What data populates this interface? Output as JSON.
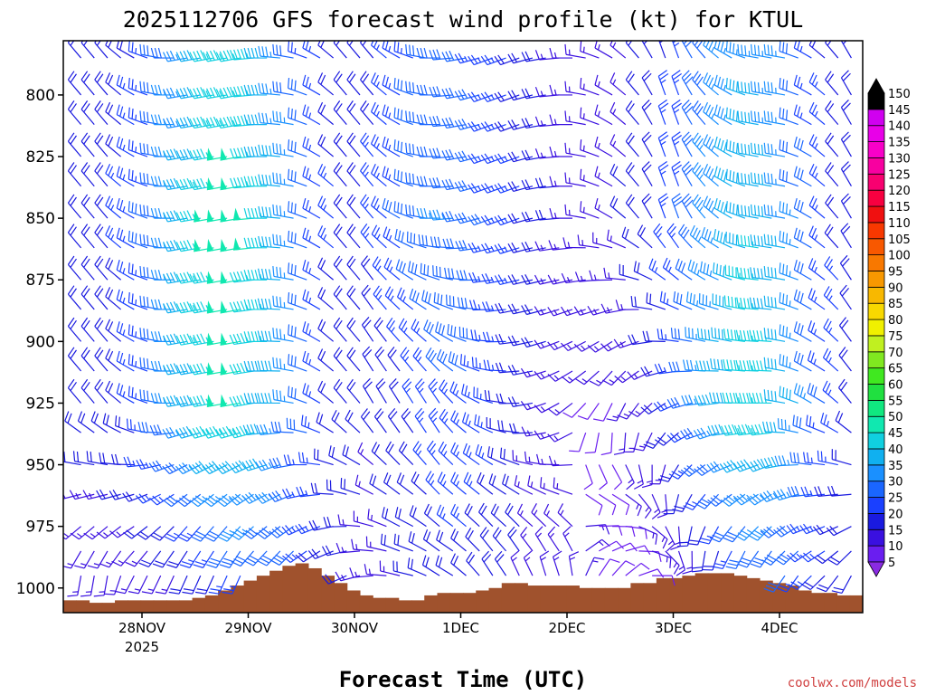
{
  "chart_data": {
    "type": "wind-barb-profile",
    "title": "2025112706 GFS forecast wind profile (kt) for KTUL",
    "xlabel": "Forecast Time (UTC)",
    "credit": "coolwx.com/models",
    "y_axis": {
      "unit": "hPa",
      "ticks": [
        800,
        825,
        850,
        875,
        900,
        925,
        950,
        975,
        1000
      ],
      "ylim": [
        778,
        1010
      ],
      "levels": [
        785,
        800,
        812,
        825,
        837,
        850,
        862,
        875,
        887,
        900,
        912,
        925,
        937,
        950,
        962,
        975,
        985,
        995
      ]
    },
    "x_axis": {
      "tick_labels": [
        "28NOV",
        "29NOV",
        "30NOV",
        "1DEC",
        "2DEC",
        "3DEC",
        "4DEC"
      ],
      "year_label": "2025",
      "start_hour_before_28nov": 15,
      "end_hour_after_4dec": 15,
      "step_hours": 3
    },
    "colorbar": {
      "values": [
        5,
        10,
        15,
        20,
        25,
        30,
        35,
        40,
        45,
        50,
        55,
        60,
        65,
        70,
        75,
        80,
        85,
        90,
        95,
        100,
        105,
        110,
        115,
        120,
        125,
        130,
        135,
        140,
        145,
        150
      ],
      "colors": [
        "#8a2be2",
        "#6a1ef0",
        "#3a10e0",
        "#1a1ae0",
        "#1a40ff",
        "#1a66ff",
        "#1a90ff",
        "#10b0f0",
        "#10d0e0",
        "#10e8b0",
        "#10e880",
        "#20e040",
        "#40e820",
        "#80e820",
        "#c0f020",
        "#f0f000",
        "#f8d800",
        "#f8b800",
        "#f89800",
        "#f87800",
        "#f85800",
        "#f83800",
        "#f01010",
        "#f80040",
        "#f80070",
        "#f800a0",
        "#f800c8",
        "#e800e8",
        "#d000f0",
        "#000000"
      ]
    },
    "terrain_color": "#a0522d",
    "terrain_pressure": [
      1005,
      1005,
      1006,
      1006,
      1005,
      1005,
      1005,
      1005,
      1005,
      1005,
      1004,
      1003,
      1001,
      999,
      997,
      995,
      993,
      991,
      990,
      992,
      995,
      998,
      1001,
      1003,
      1004,
      1004,
      1005,
      1005,
      1003,
      1002,
      1002,
      1002,
      1001,
      1000,
      998,
      998,
      999,
      999,
      999,
      999,
      1000,
      1000,
      1000,
      1000,
      998,
      998,
      996,
      996,
      995,
      994,
      994,
      994,
      995,
      996,
      997,
      998,
      999,
      1001,
      1002,
      1002,
      1003,
      1003
    ],
    "winds": {
      "comment": "direction (deg, from) and speed (kt) per forecast step for lower, middle and upper layers",
      "dir_low": [
        180,
        180,
        180,
        190,
        200,
        200,
        200,
        200,
        200,
        200,
        200,
        200,
        200,
        210,
        210,
        210,
        210,
        220,
        220,
        230,
        240,
        250,
        260,
        270,
        280,
        280,
        290,
        300,
        300,
        310,
        320,
        330,
        330,
        340,
        340,
        350,
        350,
        360,
        10,
        20,
        30,
        40,
        60,
        80,
        110,
        140,
        160,
        170,
        180,
        190,
        190,
        200,
        200,
        210,
        210,
        220,
        220,
        210,
        200,
        190,
        180,
        180
      ],
      "spd_low": [
        12,
        12,
        13,
        14,
        14,
        15,
        15,
        16,
        17,
        18,
        20,
        22,
        24,
        26,
        27,
        27,
        26,
        24,
        22,
        20,
        18,
        17,
        16,
        16,
        17,
        18,
        19,
        20,
        21,
        21,
        20,
        19,
        18,
        17,
        16,
        15,
        14,
        14,
        13,
        12,
        12,
        12,
        12,
        12,
        12,
        13,
        14,
        16,
        18,
        21,
        24,
        26,
        27,
        27,
        26,
        24,
        22,
        20,
        18,
        17,
        16,
        15
      ],
      "dir_mid": [
        320,
        320,
        320,
        310,
        300,
        290,
        280,
        270,
        260,
        260,
        260,
        260,
        260,
        260,
        270,
        270,
        280,
        290,
        300,
        310,
        320,
        320,
        330,
        330,
        330,
        330,
        330,
        330,
        320,
        310,
        300,
        290,
        280,
        270,
        260,
        250,
        240,
        230,
        220,
        210,
        200,
        200,
        210,
        220,
        230,
        240,
        250,
        260,
        260,
        270,
        270,
        270,
        270,
        280,
        290,
        300,
        300,
        310,
        320,
        320,
        320,
        320
      ],
      "spd_mid": [
        20,
        20,
        20,
        21,
        23,
        26,
        30,
        34,
        38,
        42,
        46,
        48,
        48,
        46,
        42,
        38,
        33,
        28,
        24,
        21,
        19,
        18,
        18,
        19,
        20,
        22,
        24,
        26,
        27,
        27,
        26,
        24,
        22,
        20,
        18,
        16,
        14,
        13,
        12,
        12,
        12,
        13,
        14,
        16,
        19,
        23,
        28,
        33,
        38,
        42,
        45,
        46,
        45,
        42,
        38,
        33,
        28,
        24,
        21,
        18,
        16,
        15
      ],
      "dir_high": [
        320,
        320,
        320,
        310,
        300,
        290,
        280,
        270,
        260,
        260,
        260,
        260,
        260,
        265,
        270,
        275,
        280,
        290,
        300,
        310,
        320,
        320,
        320,
        310,
        300,
        290,
        280,
        270,
        265,
        260,
        255,
        250,
        250,
        250,
        255,
        260,
        265,
        270,
        280,
        290,
        300,
        310,
        320,
        330,
        340,
        340,
        330,
        320,
        310,
        300,
        290,
        280,
        280,
        280,
        290,
        300,
        310,
        320,
        330,
        330,
        330,
        330
      ],
      "spd_high": [
        22,
        22,
        22,
        23,
        25,
        28,
        32,
        36,
        40,
        44,
        48,
        50,
        50,
        48,
        44,
        40,
        35,
        30,
        26,
        23,
        22,
        22,
        24,
        26,
        28,
        30,
        32,
        33,
        33,
        32,
        30,
        28,
        26,
        24,
        22,
        20,
        18,
        17,
        16,
        16,
        17,
        18,
        20,
        22,
        25,
        28,
        31,
        34,
        37,
        40,
        42,
        42,
        40,
        37,
        33,
        29,
        25,
        22,
        20,
        18,
        17,
        16
      ]
    }
  }
}
